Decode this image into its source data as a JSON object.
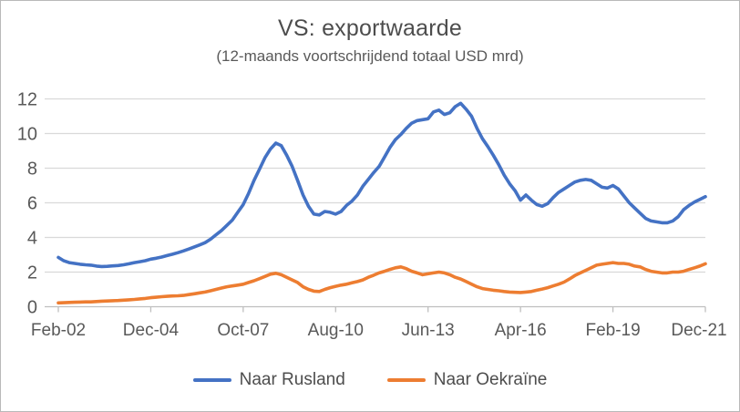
{
  "chart_data": {
    "type": "line",
    "title": "VS: exportwaarde",
    "subtitle": "(12-maands voortschrijdend totaal USD mrd)",
    "x_start": "Feb-02",
    "x_end": "Dec-21",
    "point_interval_months": 2,
    "x_tick_labels": [
      "Feb-02",
      "Dec-04",
      "Oct-07",
      "Aug-10",
      "Jun-13",
      "Apr-16",
      "Feb-19",
      "Dec-21"
    ],
    "y_ticks": [
      0,
      2,
      4,
      6,
      8,
      10,
      12
    ],
    "ylim": [
      0,
      12
    ],
    "grid": true,
    "legend_position": "bottom",
    "text_color": "#595959",
    "gridline_color": "#d9d9d9",
    "axis_color": "#bfbfbf",
    "series": [
      {
        "name": "Naar Rusland",
        "color": "#4472C4",
        "values": [
          2.85,
          2.65,
          2.55,
          2.5,
          2.45,
          2.42,
          2.4,
          2.35,
          2.32,
          2.33,
          2.36,
          2.38,
          2.42,
          2.48,
          2.55,
          2.6,
          2.66,
          2.75,
          2.8,
          2.87,
          2.95,
          3.03,
          3.12,
          3.22,
          3.33,
          3.45,
          3.57,
          3.7,
          3.9,
          4.15,
          4.4,
          4.7,
          5.0,
          5.45,
          5.9,
          6.55,
          7.3,
          7.95,
          8.6,
          9.1,
          9.45,
          9.3,
          8.75,
          8.1,
          7.3,
          6.45,
          5.8,
          5.35,
          5.3,
          5.5,
          5.45,
          5.35,
          5.5,
          5.85,
          6.1,
          6.45,
          6.95,
          7.35,
          7.75,
          8.1,
          8.65,
          9.2,
          9.65,
          9.95,
          10.3,
          10.6,
          10.75,
          10.8,
          10.85,
          11.25,
          11.35,
          11.1,
          11.2,
          11.55,
          11.75,
          11.4,
          11.0,
          10.3,
          9.7,
          9.25,
          8.75,
          8.2,
          7.6,
          7.1,
          6.7,
          6.15,
          6.45,
          6.15,
          5.9,
          5.8,
          5.95,
          6.3,
          6.6,
          6.8,
          7.0,
          7.2,
          7.3,
          7.35,
          7.3,
          7.1,
          6.9,
          6.85,
          7.0,
          6.8,
          6.4,
          6.0,
          5.7,
          5.4,
          5.1,
          4.95,
          4.9,
          4.85,
          4.85,
          4.95,
          5.2,
          5.6,
          5.85,
          6.05,
          6.2,
          6.35
        ]
      },
      {
        "name": "Naar Oekraïne",
        "color": "#ED7D31",
        "values": [
          0.22,
          0.23,
          0.25,
          0.26,
          0.27,
          0.28,
          0.28,
          0.3,
          0.32,
          0.33,
          0.35,
          0.36,
          0.38,
          0.4,
          0.42,
          0.45,
          0.48,
          0.52,
          0.55,
          0.58,
          0.6,
          0.62,
          0.63,
          0.65,
          0.7,
          0.75,
          0.8,
          0.85,
          0.92,
          1.0,
          1.08,
          1.15,
          1.2,
          1.25,
          1.3,
          1.4,
          1.5,
          1.62,
          1.75,
          1.88,
          1.93,
          1.85,
          1.7,
          1.55,
          1.4,
          1.15,
          1.0,
          0.9,
          0.88,
          1.0,
          1.1,
          1.18,
          1.25,
          1.3,
          1.38,
          1.45,
          1.55,
          1.7,
          1.82,
          1.95,
          2.05,
          2.15,
          2.25,
          2.3,
          2.2,
          2.05,
          1.95,
          1.85,
          1.9,
          1.95,
          2.0,
          1.95,
          1.85,
          1.7,
          1.6,
          1.45,
          1.3,
          1.15,
          1.05,
          1.0,
          0.95,
          0.92,
          0.88,
          0.85,
          0.83,
          0.82,
          0.85,
          0.88,
          0.95,
          1.02,
          1.1,
          1.2,
          1.3,
          1.42,
          1.6,
          1.8,
          1.95,
          2.1,
          2.25,
          2.4,
          2.45,
          2.5,
          2.55,
          2.5,
          2.5,
          2.45,
          2.35,
          2.3,
          2.15,
          2.05,
          2.0,
          1.95,
          1.95,
          2.0,
          2.0,
          2.05,
          2.15,
          2.25,
          2.35,
          2.48
        ]
      }
    ]
  }
}
